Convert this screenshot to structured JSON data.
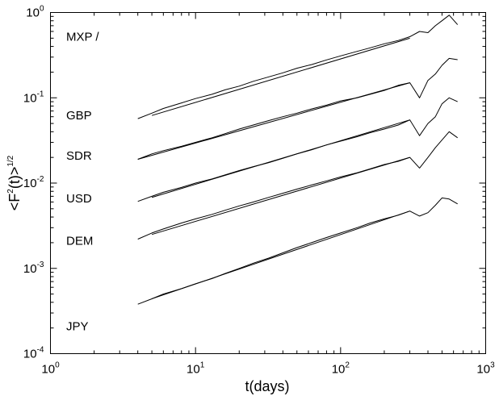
{
  "chart_data": {
    "type": "line",
    "x_scale": "log",
    "y_scale": "log",
    "xlim": [
      1,
      1000
    ],
    "ylim": [
      0.0001,
      1
    ],
    "xlabel": "t(days)",
    "ylabel": "<F²(t)>^1/2",
    "ylabel_parts": {
      "base": "<F",
      "sup1": "2",
      "mid": "(t)>",
      "sup2": "1/2"
    },
    "x_ticks": [
      {
        "value": 1,
        "base": "10",
        "exp": "0"
      },
      {
        "value": 10,
        "base": "10",
        "exp": "1"
      },
      {
        "value": 100,
        "base": "10",
        "exp": "2"
      },
      {
        "value": 1000,
        "base": "10",
        "exp": "3"
      }
    ],
    "y_ticks": [
      {
        "value": 0.0001,
        "base": "10",
        "exp": "-4"
      },
      {
        "value": 0.001,
        "base": "10",
        "exp": "-3"
      },
      {
        "value": 0.01,
        "base": "10",
        "exp": "-2"
      },
      {
        "value": 0.1,
        "base": "10",
        "exp": "-1"
      },
      {
        "value": 1,
        "base": "10",
        "exp": "0"
      }
    ],
    "grid": false,
    "legend": "none",
    "line_color": "#000000",
    "series": [
      {
        "name": "MXP /",
        "label_value": 0.52,
        "x": [
          4,
          5,
          6,
          8,
          10,
          13,
          16,
          20,
          25,
          32,
          40,
          50,
          63,
          80,
          100,
          130,
          160,
          200,
          250,
          300,
          350,
          400,
          450,
          500,
          560,
          640
        ],
        "y": [
          0.057,
          0.066,
          0.075,
          0.087,
          0.098,
          0.11,
          0.124,
          0.137,
          0.156,
          0.176,
          0.196,
          0.222,
          0.245,
          0.278,
          0.31,
          0.35,
          0.385,
          0.43,
          0.47,
          0.52,
          0.6,
          0.58,
          0.7,
          0.8,
          0.93,
          0.72
        ],
        "fit": {
          "x": [
            5,
            300
          ],
          "y": [
            0.062,
            0.5
          ]
        }
      },
      {
        "name": "GBP",
        "label_value": 0.062,
        "x": [
          4,
          5,
          6,
          8,
          10,
          13,
          16,
          20,
          25,
          32,
          40,
          50,
          63,
          80,
          100,
          130,
          160,
          200,
          250,
          300,
          350,
          400,
          450,
          500,
          560,
          640
        ],
        "y": [
          0.019,
          0.022,
          0.024,
          0.027,
          0.03,
          0.034,
          0.038,
          0.043,
          0.048,
          0.054,
          0.06,
          0.066,
          0.074,
          0.082,
          0.092,
          0.1,
          0.11,
          0.122,
          0.14,
          0.15,
          0.1,
          0.16,
          0.19,
          0.24,
          0.29,
          0.28
        ],
        "fit": {
          "x": [
            4,
            300
          ],
          "y": [
            0.019,
            0.15
          ]
        }
      },
      {
        "name": "SDR",
        "label_value": 0.021,
        "x": [
          4,
          5,
          6,
          8,
          10,
          13,
          16,
          20,
          25,
          32,
          40,
          50,
          63,
          80,
          100,
          130,
          160,
          200,
          250,
          300,
          350,
          400,
          450,
          500,
          560,
          640
        ],
        "y": [
          0.0061,
          0.007,
          0.0078,
          0.0089,
          0.01,
          0.0112,
          0.0125,
          0.014,
          0.0156,
          0.0174,
          0.0195,
          0.022,
          0.0245,
          0.028,
          0.031,
          0.035,
          0.039,
          0.043,
          0.048,
          0.055,
          0.036,
          0.05,
          0.06,
          0.085,
          0.1,
          0.09
        ],
        "fit": {
          "x": [
            5,
            300
          ],
          "y": [
            0.0068,
            0.055
          ]
        }
      },
      {
        "name": "USD",
        "label_value": 0.0066,
        "x": [
          4,
          5,
          6,
          8,
          10,
          13,
          16,
          20,
          25,
          32,
          40,
          50,
          63,
          80,
          100,
          130,
          160,
          200,
          250,
          300,
          350,
          400,
          450,
          500,
          560,
          640
        ],
        "y": [
          0.0022,
          0.0026,
          0.0029,
          0.0034,
          0.0038,
          0.0043,
          0.0048,
          0.0054,
          0.006,
          0.0068,
          0.0076,
          0.0085,
          0.0095,
          0.0106,
          0.0118,
          0.0132,
          0.0147,
          0.0165,
          0.018,
          0.02,
          0.015,
          0.02,
          0.026,
          0.032,
          0.04,
          0.034
        ],
        "fit": {
          "x": [
            5,
            300
          ],
          "y": [
            0.0025,
            0.02
          ]
        }
      },
      {
        "name": "DEM",
        "label_value": 0.0021,
        "x": [
          4,
          5,
          6,
          8,
          10,
          13,
          16,
          20,
          25,
          32,
          40,
          50,
          63,
          80,
          100,
          130,
          160,
          200,
          250,
          300,
          350,
          400,
          450,
          500,
          560,
          640
        ],
        "y": [
          0.00038,
          0.00044,
          0.0005,
          0.00058,
          0.00066,
          0.00076,
          0.00087,
          0.001,
          0.00115,
          0.00132,
          0.00152,
          0.00175,
          0.002,
          0.0023,
          0.0026,
          0.003,
          0.0034,
          0.0038,
          0.0042,
          0.0047,
          0.0041,
          0.0045,
          0.0055,
          0.0067,
          0.0065,
          0.0057
        ],
        "fit": {
          "x": [
            5,
            300
          ],
          "y": [
            0.00044,
            0.0047
          ]
        }
      },
      {
        "name": "JPY",
        "label_value": 0.00021,
        "x": [],
        "y": []
      }
    ]
  }
}
